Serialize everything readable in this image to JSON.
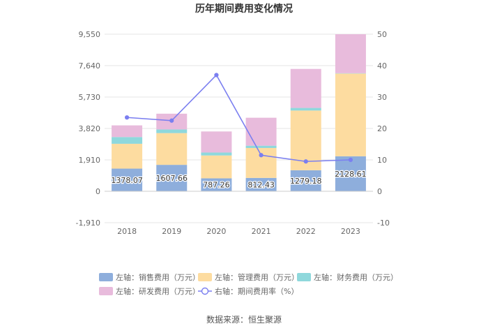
{
  "chart_data": {
    "type": "bar",
    "title": "历年期间费用变化情况",
    "categories": [
      "2018",
      "2019",
      "2020",
      "2021",
      "2022",
      "2023"
    ],
    "left_axis": {
      "min": -1910,
      "max": 9550,
      "ticks": [
        "-1,910",
        "0",
        "1,910",
        "3,820",
        "5,730",
        "7,640",
        "9,550"
      ],
      "tick_values": [
        -1910,
        0,
        1910,
        3820,
        5730,
        7640,
        9550
      ]
    },
    "right_axis": {
      "min": -10,
      "max": 50,
      "ticks": [
        "-10",
        "0",
        "10",
        "20",
        "30",
        "40",
        "50"
      ],
      "tick_values": [
        -10,
        0,
        10,
        20,
        30,
        40,
        50
      ]
    },
    "series": [
      {
        "name": "左轴：销售费用（万元）",
        "type": "bar",
        "stack": "left",
        "color": "#8eaedc",
        "values": [
          1378.07,
          1607.66,
          787.26,
          812.43,
          1279.18,
          2128.61
        ],
        "labels": [
          "1378.07",
          "1607.66",
          "787.26",
          "812.43",
          "1279.18",
          "2128.61"
        ]
      },
      {
        "name": "左轴：管理费用（万元）",
        "type": "bar",
        "stack": "left",
        "color": "#fddca0",
        "values": [
          1510,
          1930,
          1390,
          1820,
          3630,
          5030
        ]
      },
      {
        "name": "左轴：财务费用（万元）",
        "type": "bar",
        "stack": "left",
        "color": "#8fd8dc",
        "values": [
          410,
          220,
          180,
          140,
          160,
          20
        ]
      },
      {
        "name": "左轴：研发费用（万元）",
        "type": "bar",
        "stack": "left",
        "color": "#e8bbdc",
        "values": [
          710,
          960,
          1280,
          1700,
          2370,
          2370
        ]
      },
      {
        "name": "右轴：期间费用率（%）",
        "type": "line",
        "axis": "right",
        "color": "#7b7ff0",
        "values": [
          23.5,
          22.5,
          37.0,
          11.5,
          9.5,
          10.0
        ]
      }
    ],
    "grid": true,
    "legend_position": "bottom"
  },
  "source": "数据来源：恒生聚源"
}
